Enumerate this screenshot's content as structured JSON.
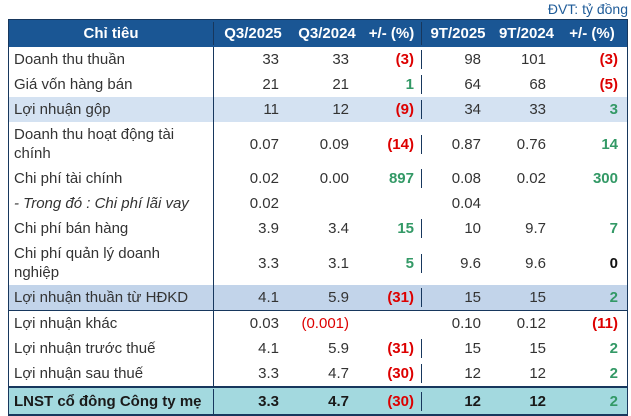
{
  "chart_data": {
    "type": "table",
    "unit_note": "ĐVT: tỷ đồng",
    "columns": [
      "Chỉ tiêu",
      "Q3/2025",
      "Q3/2024",
      "+/- (%)",
      "9T/2025",
      "9T/2024",
      "+/- (%)"
    ],
    "rows": [
      {
        "label": "Doanh thu thuần",
        "cells": [
          "33",
          "33",
          "(3)",
          "98",
          "101",
          "(3)"
        ],
        "cell_classes": [
          "",
          "",
          "neg",
          "",
          "",
          "neg"
        ],
        "variant": ""
      },
      {
        "label": "Giá vốn hàng bán",
        "cells": [
          "21",
          "21",
          "1",
          "64",
          "68",
          "(5)"
        ],
        "cell_classes": [
          "",
          "",
          "pos",
          "",
          "",
          "neg"
        ],
        "variant": ""
      },
      {
        "label": "Lợi nhuận gộp",
        "cells": [
          "11",
          "12",
          "(9)",
          "34",
          "33",
          "3"
        ],
        "cell_classes": [
          "",
          "",
          "neg",
          "",
          "",
          "pos"
        ],
        "variant": "band"
      },
      {
        "label": "Doanh thu hoạt động tài chính",
        "cells": [
          "0.07",
          "0.09",
          "(14)",
          "0.87",
          "0.76",
          "14"
        ],
        "cell_classes": [
          "",
          "",
          "neg",
          "",
          "",
          "pos"
        ],
        "variant": ""
      },
      {
        "label": "Chi phí tài chính",
        "cells": [
          "0.02",
          "0.00",
          "897",
          "0.08",
          "0.02",
          "300"
        ],
        "cell_classes": [
          "",
          "",
          "pos",
          "",
          "",
          "pos"
        ],
        "variant": ""
      },
      {
        "label": "- Trong đó : Chi phí lãi vay",
        "cells": [
          "0.02",
          "",
          "",
          "0.04",
          "",
          ""
        ],
        "cell_classes": [
          "",
          "",
          "",
          "",
          "",
          ""
        ],
        "variant": "italic"
      },
      {
        "label": "Chi phí bán hàng",
        "cells": [
          "3.9",
          "3.4",
          "15",
          "10",
          "9.7",
          "7"
        ],
        "cell_classes": [
          "",
          "",
          "pos",
          "",
          "",
          "pos"
        ],
        "variant": ""
      },
      {
        "label": "Chi phí quản lý doanh nghiệp",
        "cells": [
          "3.3",
          "3.1",
          "5",
          "9.6",
          "9.6",
          "0"
        ],
        "cell_classes": [
          "",
          "",
          "pos",
          "",
          "",
          "bold"
        ],
        "variant": ""
      },
      {
        "label": "Lợi nhuận thuần từ HĐKD",
        "cells": [
          "4.1",
          "5.9",
          "(31)",
          "15",
          "15",
          "2"
        ],
        "cell_classes": [
          "",
          "",
          "neg",
          "",
          "",
          "pos"
        ],
        "variant": "band2"
      },
      {
        "label": "Lợi nhuận khác",
        "cells": [
          "0.03",
          "(0.001)",
          "",
          "0.10",
          "0.12",
          "(11)"
        ],
        "cell_classes": [
          "",
          "red",
          "",
          "",
          "",
          "neg"
        ],
        "variant": ""
      },
      {
        "label": "Lợi nhuận trước thuế",
        "cells": [
          "4.1",
          "5.9",
          "(31)",
          "15",
          "15",
          "2"
        ],
        "cell_classes": [
          "",
          "",
          "neg",
          "",
          "",
          "pos"
        ],
        "variant": ""
      },
      {
        "label": "Lợi nhuận sau thuế",
        "cells": [
          "3.3",
          "4.7",
          "(30)",
          "12",
          "12",
          "2"
        ],
        "cell_classes": [
          "",
          "",
          "neg",
          "",
          "",
          "pos"
        ],
        "variant": ""
      },
      {
        "label": "LNST cổ đông Công ty mẹ",
        "cells": [
          "3.3",
          "4.7",
          "(30)",
          "12",
          "12",
          "2"
        ],
        "cell_classes": [
          "",
          "",
          "neg",
          "",
          "",
          "pos"
        ],
        "variant": "total"
      }
    ],
    "colors": {
      "header_bg": "#1A5694",
      "header_text": "#FFFFFF",
      "highlight_row_bg": "#D4E2F2",
      "highlight_row2_bg": "#C2D4EA",
      "total_row_bg": "#A3D9DF",
      "negative": "#DD0000",
      "positive": "#339966",
      "border": "#17375D",
      "unit_text": "#1F5C99"
    }
  }
}
